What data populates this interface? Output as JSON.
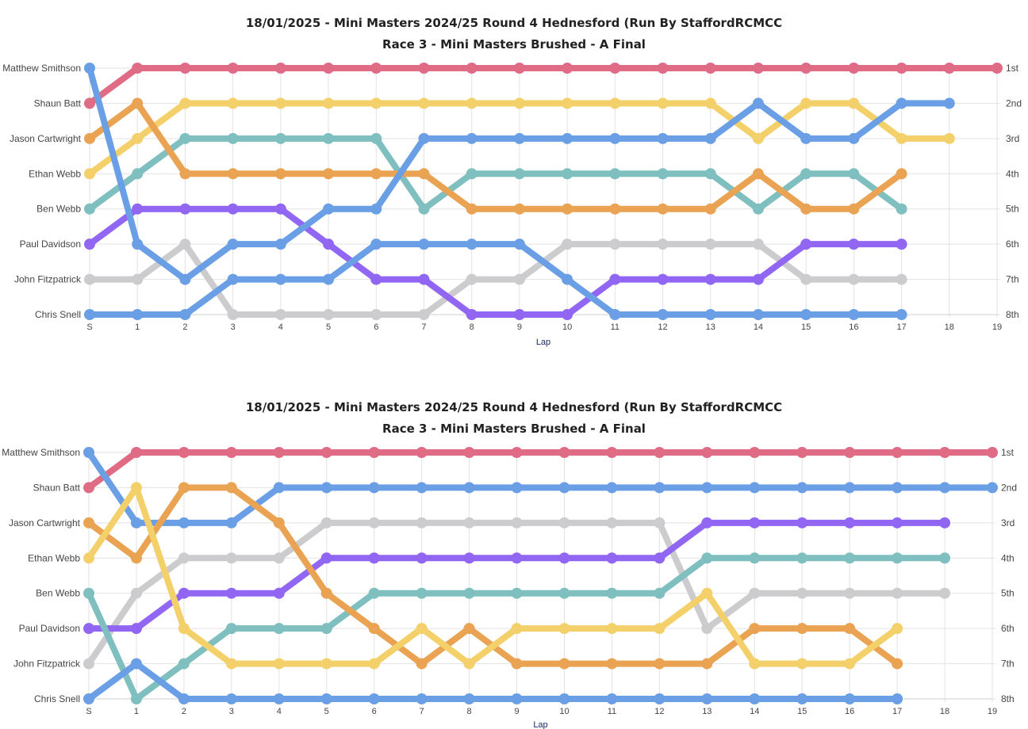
{
  "colors": {
    "red": "#e06b84",
    "blue": "#6a9fe6",
    "orange": "#e9a352",
    "yellow": "#f3d06a",
    "teal": "#7fbfbf",
    "purple": "#9166f2",
    "grey": "#cccccf"
  },
  "chart_data": [
    {
      "type": "line",
      "title": "18/01/2025 - Mini Masters 2024/25 Round 4 Hednesford (Run By StaffordRCMCC",
      "subtitle": "Race 3 - Mini Masters Brushed - A Final",
      "xlabel": "Lap",
      "x_ticks": [
        "S",
        "1",
        "2",
        "3",
        "4",
        "5",
        "6",
        "7",
        "8",
        "9",
        "10",
        "11",
        "12",
        "13",
        "14",
        "15",
        "16",
        "17",
        "18",
        "19"
      ],
      "left_labels": [
        "Matthew Smithson",
        "Shaun Batt",
        "Jason Cartwright",
        "Ethan Webb",
        "Ben Webb",
        "Paul Davidson",
        "John Fitzpatrick",
        "Chris Snell"
      ],
      "right_labels": [
        "1st",
        "2nd",
        "3rd",
        "4th",
        "5th",
        "6th",
        "7th",
        "8th"
      ],
      "ylim": [
        1,
        8
      ],
      "y_inverted": true,
      "grid": true,
      "series": [
        {
          "color": "#e06b84",
          "values": [
            2,
            1,
            1,
            1,
            1,
            1,
            1,
            1,
            1,
            1,
            1,
            1,
            1,
            1,
            1,
            1,
            1,
            1,
            1,
            1
          ]
        },
        {
          "color": "#f3d06a",
          "values": [
            4,
            3,
            2,
            2,
            2,
            2,
            2,
            2,
            2,
            2,
            2,
            2,
            2,
            2,
            3,
            2,
            2,
            3,
            3
          ]
        },
        {
          "color": "#7fbfbf",
          "values": [
            5,
            4,
            3,
            3,
            3,
            3,
            3,
            5,
            4,
            4,
            4,
            4,
            4,
            4,
            5,
            4,
            4,
            5
          ]
        },
        {
          "color": "#e9a352",
          "values": [
            3,
            2,
            4,
            4,
            4,
            4,
            4,
            4,
            5,
            5,
            5,
            5,
            5,
            5,
            4,
            5,
            5,
            4
          ]
        },
        {
          "color": "#cccccf",
          "values": [
            7,
            7,
            6,
            8,
            8,
            8,
            8,
            8,
            7,
            7,
            6,
            6,
            6,
            6,
            6,
            7,
            7,
            7
          ]
        },
        {
          "color": "#9166f2",
          "values": [
            6,
            5,
            5,
            5,
            5,
            6,
            7,
            7,
            8,
            8,
            8,
            7,
            7,
            7,
            7,
            6,
            6,
            6
          ]
        },
        {
          "color": "#6a9fe6",
          "values": [
            8,
            8,
            8,
            7,
            7,
            7,
            6,
            6,
            6,
            6,
            7,
            8,
            8,
            8,
            8,
            8,
            8,
            8
          ]
        },
        {
          "color": "#6a9fe6",
          "values": [
            1,
            6,
            7,
            6,
            6,
            5,
            5,
            3,
            3,
            3,
            3,
            3,
            3,
            3,
            2,
            3,
            3,
            2,
            2
          ]
        }
      ]
    },
    {
      "type": "line",
      "title": "18/01/2025 - Mini Masters 2024/25 Round 4 Hednesford (Run By StaffordRCMCC",
      "subtitle": "Race 3 - Mini Masters Brushed - A Final",
      "xlabel": "Lap",
      "x_ticks": [
        "S",
        "1",
        "2",
        "3",
        "4",
        "5",
        "6",
        "7",
        "8",
        "9",
        "10",
        "11",
        "12",
        "13",
        "14",
        "15",
        "16",
        "17",
        "18",
        "19"
      ],
      "left_labels": [
        "Matthew Smithson",
        "Shaun Batt",
        "Jason Cartwright",
        "Ethan Webb",
        "Ben Webb",
        "Paul Davidson",
        "John Fitzpatrick",
        "Chris Snell"
      ],
      "right_labels": [
        "1st",
        "2nd",
        "3rd",
        "4th",
        "5th",
        "6th",
        "7th",
        "8th"
      ],
      "ylim": [
        1,
        8
      ],
      "y_inverted": true,
      "grid": true,
      "series": [
        {
          "color": "#e06b84",
          "values": [
            2,
            1,
            1,
            1,
            1,
            1,
            1,
            1,
            1,
            1,
            1,
            1,
            1,
            1,
            1,
            1,
            1,
            1,
            1,
            1
          ]
        },
        {
          "color": "#6a9fe6",
          "values": [
            1,
            3,
            3,
            3,
            2,
            2,
            2,
            2,
            2,
            2,
            2,
            2,
            2,
            2,
            2,
            2,
            2,
            2,
            2,
            2
          ]
        },
        {
          "color": "#cccccf",
          "values": [
            7,
            5,
            4,
            4,
            4,
            3,
            3,
            3,
            3,
            3,
            3,
            3,
            3,
            6,
            5,
            5,
            5,
            5,
            5
          ]
        },
        {
          "color": "#9166f2",
          "values": [
            6,
            6,
            5,
            5,
            5,
            4,
            4,
            4,
            4,
            4,
            4,
            4,
            4,
            3,
            3,
            3,
            3,
            3,
            3
          ]
        },
        {
          "color": "#7fbfbf",
          "values": [
            5,
            8,
            7,
            6,
            6,
            6,
            5,
            5,
            5,
            5,
            5,
            5,
            5,
            4,
            4,
            4,
            4,
            4,
            4
          ]
        },
        {
          "color": "#e9a352",
          "values": [
            3,
            4,
            2,
            2,
            3,
            5,
            6,
            7,
            6,
            7,
            7,
            7,
            7,
            7,
            6,
            6,
            6,
            7
          ]
        },
        {
          "color": "#f3d06a",
          "values": [
            4,
            2,
            6,
            7,
            7,
            7,
            7,
            6,
            7,
            6,
            6,
            6,
            6,
            5,
            7,
            7,
            7,
            6
          ]
        },
        {
          "color": "#6a9fe6",
          "values": [
            8,
            7,
            8,
            8,
            8,
            8,
            8,
            8,
            8,
            8,
            8,
            8,
            8,
            8,
            8,
            8,
            8,
            8
          ]
        }
      ]
    }
  ]
}
